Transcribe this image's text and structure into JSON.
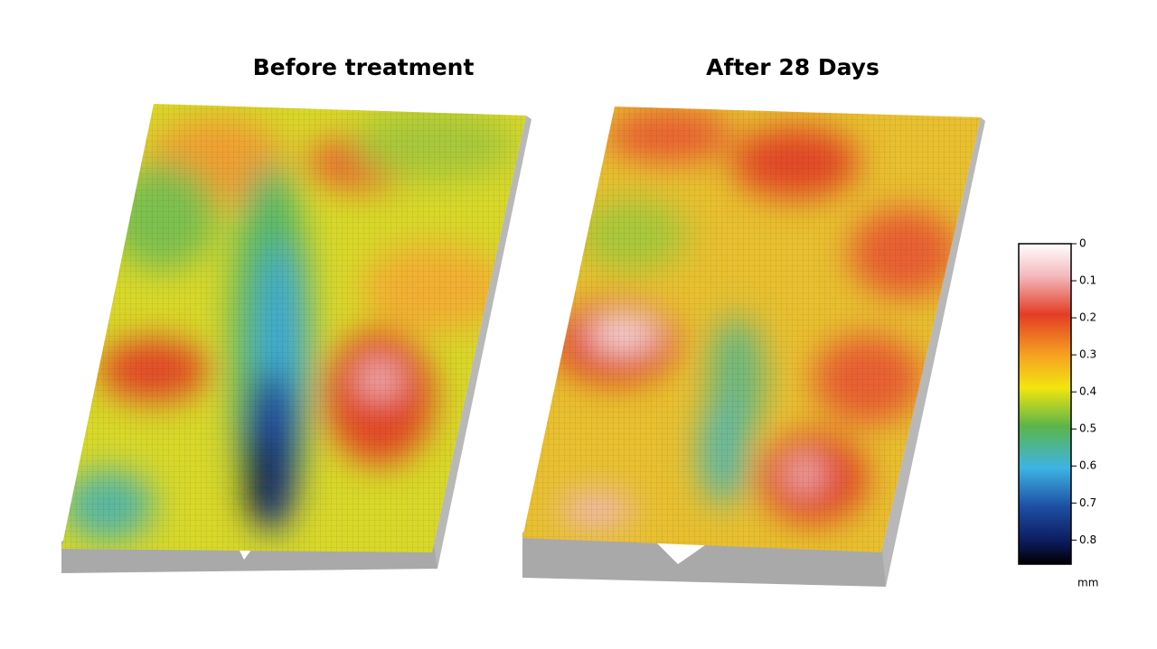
{
  "panels": [
    {
      "title": "Before treatment"
    },
    {
      "title": "After 28 Days"
    }
  ],
  "colorbar": {
    "lim": [
      0,
      0.865
    ],
    "ticks": [
      0,
      0.1,
      0.2,
      0.3,
      0.4,
      0.5,
      0.6,
      0.7,
      0.8
    ],
    "unit": "mm"
  }
}
